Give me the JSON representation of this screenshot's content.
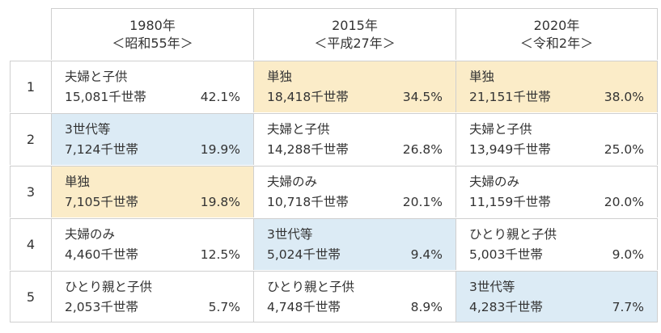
{
  "columns": [
    {
      "year": "1980年",
      "era": "＜昭和55年＞"
    },
    {
      "year": "2015年",
      "era": "＜平成27年＞"
    },
    {
      "year": "2020年",
      "era": "＜令和2年＞"
    }
  ],
  "ranks": [
    "1",
    "2",
    "3",
    "4",
    "5"
  ],
  "rows": [
    [
      {
        "type": "夫婦と子供",
        "count": "15,081千世帯",
        "pct": "42.1%",
        "highlight": "none"
      },
      {
        "type": "単独",
        "count": "18,418千世帯",
        "pct": "34.5%",
        "highlight": "single"
      },
      {
        "type": "単独",
        "count": "21,151千世帯",
        "pct": "38.0%",
        "highlight": "single"
      }
    ],
    [
      {
        "type": "3世代等",
        "count": "7,124千世帯",
        "pct": "19.9%",
        "highlight": "multi"
      },
      {
        "type": "夫婦と子供",
        "count": "14,288千世帯",
        "pct": "26.8%",
        "highlight": "none"
      },
      {
        "type": "夫婦と子供",
        "count": "13,949千世帯",
        "pct": "25.0%",
        "highlight": "none"
      }
    ],
    [
      {
        "type": "単独",
        "count": "7,105千世帯",
        "pct": "19.8%",
        "highlight": "single"
      },
      {
        "type": "夫婦のみ",
        "count": "10,718千世帯",
        "pct": "20.1%",
        "highlight": "none"
      },
      {
        "type": "夫婦のみ",
        "count": "11,159千世帯",
        "pct": "20.0%",
        "highlight": "none"
      }
    ],
    [
      {
        "type": "夫婦のみ",
        "count": "4,460千世帯",
        "pct": "12.5%",
        "highlight": "none"
      },
      {
        "type": "3世代等",
        "count": "5,024千世帯",
        "pct": "9.4%",
        "highlight": "multi"
      },
      {
        "type": "ひとり親と子供",
        "count": "5,003千世帯",
        "pct": "9.0%",
        "highlight": "none"
      }
    ],
    [
      {
        "type": "ひとり親と子供",
        "count": "2,053千世帯",
        "pct": "5.7%",
        "highlight": "none"
      },
      {
        "type": "ひとり親と子供",
        "count": "4,748千世帯",
        "pct": "8.9%",
        "highlight": "none"
      },
      {
        "type": "3世代等",
        "count": "4,283千世帯",
        "pct": "7.7%",
        "highlight": "multi"
      }
    ]
  ],
  "colors": {
    "single_highlight": "#fbecc8",
    "multi_highlight": "#dcebf5",
    "border": "#cfcfcf",
    "text": "#333333"
  }
}
